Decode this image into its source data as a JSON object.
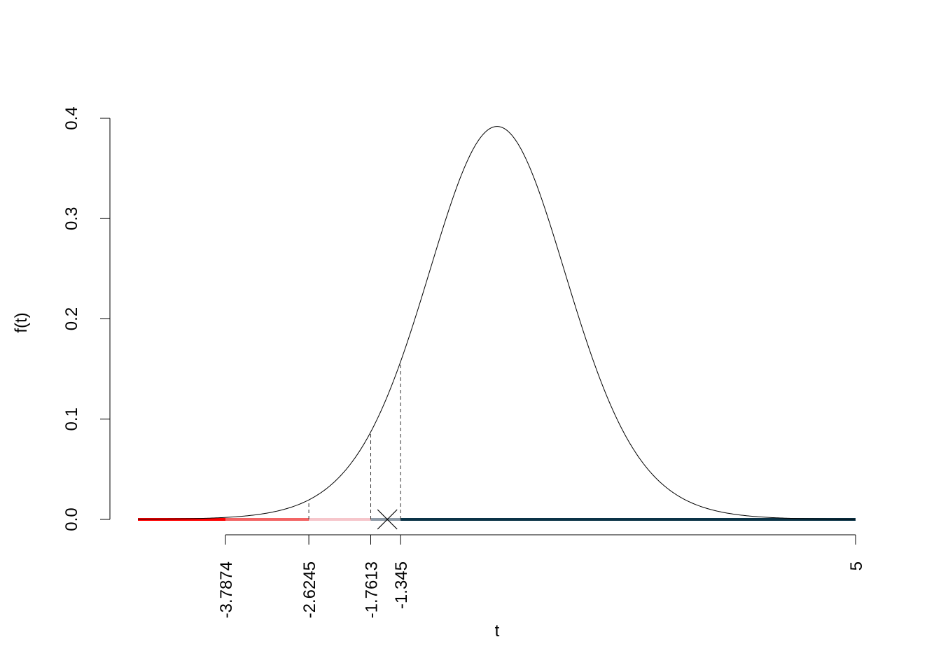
{
  "chart_data": {
    "type": "line",
    "title": "",
    "xlabel": "t",
    "ylabel": "f(t)",
    "xlim": [
      -4.9,
      5
    ],
    "ylim": [
      0,
      0.4
    ],
    "distribution": "t",
    "df": 14,
    "y_ticks": [
      {
        "value": 0.0,
        "label": "0.0"
      },
      {
        "value": 0.1,
        "label": "0.1"
      },
      {
        "value": 0.2,
        "label": "0.2"
      },
      {
        "value": 0.3,
        "label": "0.3"
      },
      {
        "value": 0.4,
        "label": "0.4"
      }
    ],
    "x_ticks": [
      {
        "value": -3.7874,
        "label": "-3.7874"
      },
      {
        "value": -2.6245,
        "label": "-2.6245"
      },
      {
        "value": -1.7613,
        "label": "-1.7613"
      },
      {
        "value": -1.345,
        "label": "-1.345"
      },
      {
        "value": 5,
        "label": "5"
      }
    ],
    "critical_lines": [
      -2.6245,
      -1.7613,
      -1.345
    ],
    "observed_statistic": -1.53,
    "segments": [
      {
        "from": -4.9,
        "to": -3.7874,
        "color": "#ff0000"
      },
      {
        "from": -3.7874,
        "to": -2.6245,
        "color": "#f26464"
      },
      {
        "from": -2.6245,
        "to": -1.7613,
        "color": "#f6c6cb"
      },
      {
        "from": -1.7613,
        "to": -1.345,
        "color": "#8e9aa6"
      },
      {
        "from": -1.345,
        "to": 5,
        "color": "#0a3347"
      }
    ],
    "colors": {
      "curve": "#000000",
      "marker": "#000000"
    }
  }
}
